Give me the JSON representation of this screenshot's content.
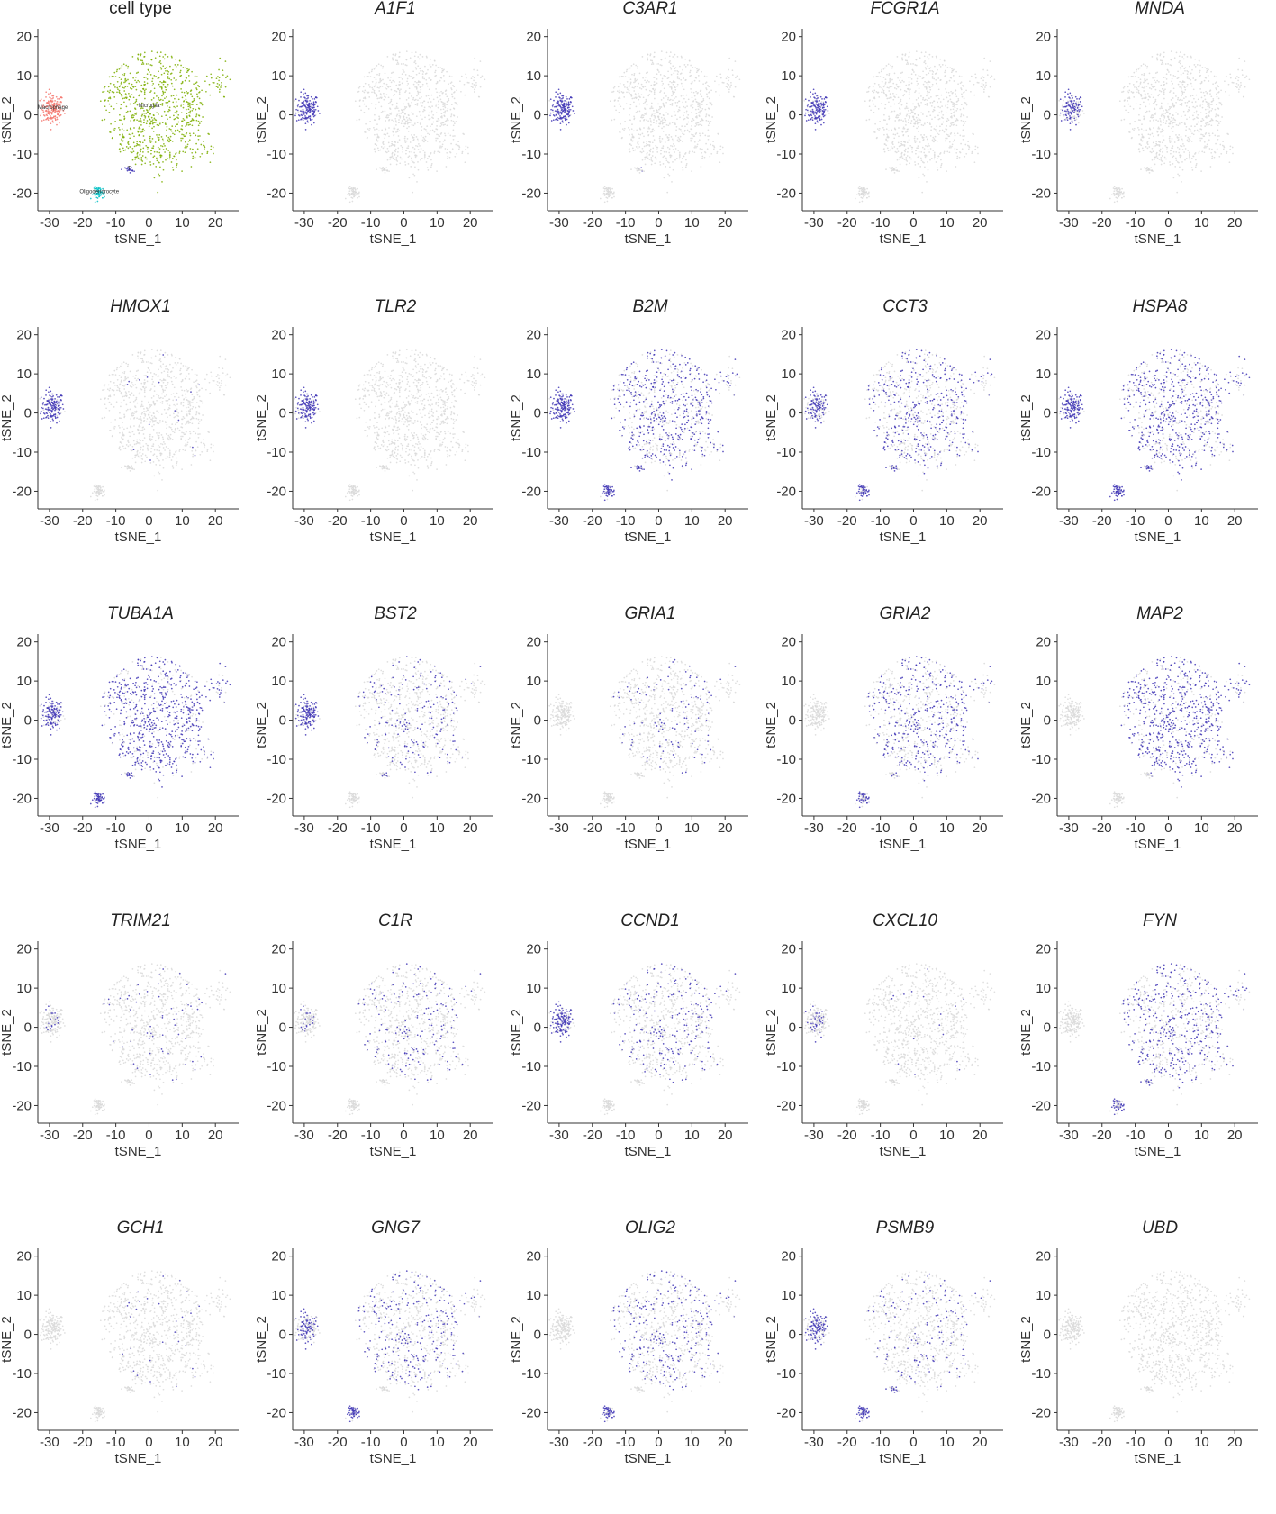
{
  "figure": {
    "xlabel": "tSNE_1",
    "ylabel": "tSNE_2",
    "xticks": [
      -30,
      -20,
      -10,
      0,
      10,
      20
    ],
    "yticks": [
      20,
      10,
      0,
      -10,
      -20
    ],
    "xlim": [
      -33.5,
      27
    ],
    "ylim": [
      -24.5,
      22
    ]
  },
  "colors": {
    "expressed": "#3f35b5",
    "not_expressed": "#d9d9d9",
    "axis": "#333333",
    "macrophage": "#f4766d",
    "microglia": "#7cae00",
    "oligodendrocyte": "#00bfc4",
    "t_cell": "#3f35b5"
  },
  "chart_data": [
    {
      "type": "scatter",
      "title": "cell type",
      "xlabel": "tSNE_1",
      "ylabel": "tSNE_2",
      "xlim": [
        -33.5,
        27
      ],
      "ylim": [
        -24.5,
        22
      ],
      "groups": [
        {
          "name": "Macrophage",
          "center": [
            -29,
            1.5
          ]
        },
        {
          "name": "Microglia",
          "center": [
            0,
            2
          ]
        },
        {
          "name": "Oligodendrocyte",
          "center": [
            -15,
            -20
          ]
        },
        {
          "name": "T",
          "center": [
            -6,
            -14
          ]
        }
      ]
    },
    {
      "type": "scatter",
      "title": "A1F1",
      "xlabel": "tSNE_1",
      "ylabel": "tSNE_2",
      "expression": {
        "mac": 0.9,
        "mic": 0.0,
        "oli": 0.0,
        "tc": 0.0
      }
    },
    {
      "type": "scatter",
      "title": "C3AR1",
      "xlabel": "tSNE_1",
      "ylabel": "tSNE_2",
      "expression": {
        "mac": 0.9,
        "mic": 0.0,
        "oli": 0.0,
        "tc": 0.1
      }
    },
    {
      "type": "scatter",
      "title": "FCGR1A",
      "xlabel": "tSNE_1",
      "ylabel": "tSNE_2",
      "expression": {
        "mac": 0.85,
        "mic": 0.0,
        "oli": 0.0,
        "tc": 0.0
      }
    },
    {
      "type": "scatter",
      "title": "MNDA",
      "xlabel": "tSNE_1",
      "ylabel": "tSNE_2",
      "expression": {
        "mac": 0.6,
        "mic": 0.0,
        "oli": 0.0,
        "tc": 0.0
      }
    },
    {
      "type": "scatter",
      "title": "HMOX1",
      "xlabel": "tSNE_1",
      "ylabel": "tSNE_2",
      "expression": {
        "mac": 0.85,
        "mic": 0.02,
        "oli": 0.0,
        "tc": 0.0
      }
    },
    {
      "type": "scatter",
      "title": "TLR2",
      "xlabel": "tSNE_1",
      "ylabel": "tSNE_2",
      "expression": {
        "mac": 0.8,
        "mic": 0.0,
        "oli": 0.0,
        "tc": 0.0
      }
    },
    {
      "type": "scatter",
      "title": "B2M",
      "xlabel": "tSNE_1",
      "ylabel": "tSNE_2",
      "expression": {
        "mac": 0.9,
        "mic": 0.55,
        "oli": 0.9,
        "tc": 0.9
      }
    },
    {
      "type": "scatter",
      "title": "CCT3",
      "xlabel": "tSNE_1",
      "ylabel": "tSNE_2",
      "expression": {
        "mac": 0.6,
        "mic": 0.45,
        "oli": 0.8,
        "tc": 0.5
      }
    },
    {
      "type": "scatter",
      "title": "HSPA8",
      "xlabel": "tSNE_1",
      "ylabel": "tSNE_2",
      "expression": {
        "mac": 0.8,
        "mic": 0.6,
        "oli": 0.95,
        "tc": 0.8
      }
    },
    {
      "type": "scatter",
      "title": "TUBA1A",
      "xlabel": "tSNE_1",
      "ylabel": "tSNE_2",
      "expression": {
        "mac": 0.7,
        "mic": 0.75,
        "oli": 0.95,
        "tc": 0.8
      }
    },
    {
      "type": "scatter",
      "title": "BST2",
      "xlabel": "tSNE_1",
      "ylabel": "tSNE_2",
      "expression": {
        "mac": 0.8,
        "mic": 0.2,
        "oli": 0.0,
        "tc": 0.3
      }
    },
    {
      "type": "scatter",
      "title": "GRIA1",
      "xlabel": "tSNE_1",
      "ylabel": "tSNE_2",
      "expression": {
        "mac": 0.0,
        "mic": 0.12,
        "oli": 0.0,
        "tc": 0.0
      }
    },
    {
      "type": "scatter",
      "title": "GRIA2",
      "xlabel": "tSNE_1",
      "ylabel": "tSNE_2",
      "expression": {
        "mac": 0.0,
        "mic": 0.45,
        "oli": 0.7,
        "tc": 0.2
      }
    },
    {
      "type": "scatter",
      "title": "MAP2",
      "xlabel": "tSNE_1",
      "ylabel": "tSNE_2",
      "expression": {
        "mac": 0.0,
        "mic": 0.7,
        "oli": 0.0,
        "tc": 0.1
      }
    },
    {
      "type": "scatter",
      "title": "TRIM21",
      "xlabel": "tSNE_1",
      "ylabel": "tSNE_2",
      "expression": {
        "mac": 0.1,
        "mic": 0.05,
        "oli": 0.0,
        "tc": 0.0
      }
    },
    {
      "type": "scatter",
      "title": "C1R",
      "xlabel": "tSNE_1",
      "ylabel": "tSNE_2",
      "expression": {
        "mac": 0.1,
        "mic": 0.18,
        "oli": 0.0,
        "tc": 0.0
      }
    },
    {
      "type": "scatter",
      "title": "CCND1",
      "xlabel": "tSNE_1",
      "ylabel": "tSNE_2",
      "expression": {
        "mac": 0.7,
        "mic": 0.25,
        "oli": 0.0,
        "tc": 0.0
      }
    },
    {
      "type": "scatter",
      "title": "CXCL10",
      "xlabel": "tSNE_1",
      "ylabel": "tSNE_2",
      "expression": {
        "mac": 0.25,
        "mic": 0.02,
        "oli": 0.0,
        "tc": 0.0
      }
    },
    {
      "type": "scatter",
      "title": "FYN",
      "xlabel": "tSNE_1",
      "ylabel": "tSNE_2",
      "expression": {
        "mac": 0.0,
        "mic": 0.45,
        "oli": 0.7,
        "tc": 0.5
      }
    },
    {
      "type": "scatter",
      "title": "GCH1",
      "xlabel": "tSNE_1",
      "ylabel": "tSNE_2",
      "expression": {
        "mac": 0.0,
        "mic": 0.03,
        "oli": 0.0,
        "tc": 0.0
      }
    },
    {
      "type": "scatter",
      "title": "GNG7",
      "xlabel": "tSNE_1",
      "ylabel": "tSNE_2",
      "expression": {
        "mac": 0.5,
        "mic": 0.3,
        "oli": 0.9,
        "tc": 0.0
      }
    },
    {
      "type": "scatter",
      "title": "OLIG2",
      "xlabel": "tSNE_1",
      "ylabel": "tSNE_2",
      "expression": {
        "mac": 0.0,
        "mic": 0.3,
        "oli": 0.8,
        "tc": 0.0
      }
    },
    {
      "type": "scatter",
      "title": "PSMB9",
      "xlabel": "tSNE_1",
      "ylabel": "tSNE_2",
      "expression": {
        "mac": 0.6,
        "mic": 0.15,
        "oli": 0.85,
        "tc": 0.6
      }
    },
    {
      "type": "scatter",
      "title": "UBD",
      "xlabel": "tSNE_1",
      "ylabel": "tSNE_2",
      "expression": {
        "mac": 0.0,
        "mic": 0.0,
        "oli": 0.0,
        "tc": 0.0
      }
    }
  ]
}
